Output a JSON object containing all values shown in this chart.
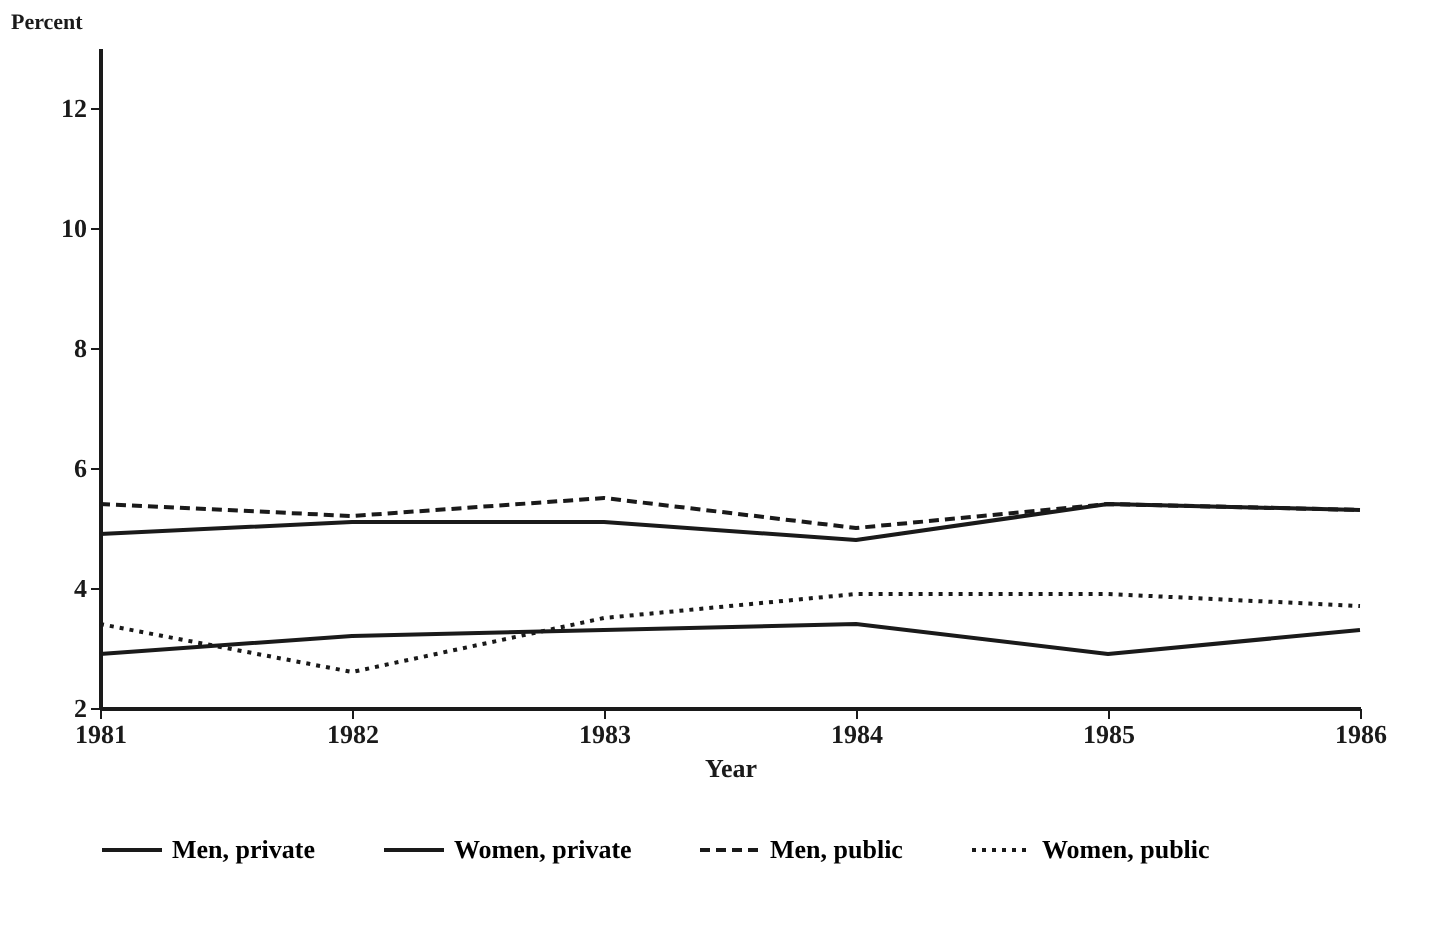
{
  "chart_data": {
    "type": "line",
    "xlabel": "Year",
    "ylabel": "Percent",
    "x": [
      1981,
      1982,
      1983,
      1984,
      1985,
      1986
    ],
    "series": [
      {
        "name": "Men, private",
        "color": "#1a1a1a",
        "line_style": "solid",
        "values": [
          4.9,
          5.1,
          5.1,
          4.8,
          5.4,
          5.3
        ]
      },
      {
        "name": "Women, private",
        "color": "#1a1a1a",
        "line_style": "solid",
        "values": [
          2.9,
          3.2,
          3.3,
          3.4,
          2.9,
          3.3
        ]
      },
      {
        "name": "Men, public",
        "color": "#1a1a1a",
        "line_style": "dashed",
        "values": [
          5.4,
          5.2,
          5.5,
          5.0,
          5.4,
          5.3
        ]
      },
      {
        "name": "Women, public",
        "color": "#1a1a1a",
        "line_style": "dotted",
        "values": [
          3.4,
          2.6,
          3.5,
          3.9,
          3.9,
          3.7
        ]
      }
    ],
    "xlim": [
      1981,
      1986
    ],
    "xticks": [
      1981,
      1982,
      1983,
      1984,
      1985,
      1986
    ],
    "ylim": [
      2,
      13
    ],
    "yticks": [
      2,
      4,
      6,
      8,
      10,
      12
    ],
    "grid": false,
    "legend": "bottom",
    "marker": "none"
  }
}
